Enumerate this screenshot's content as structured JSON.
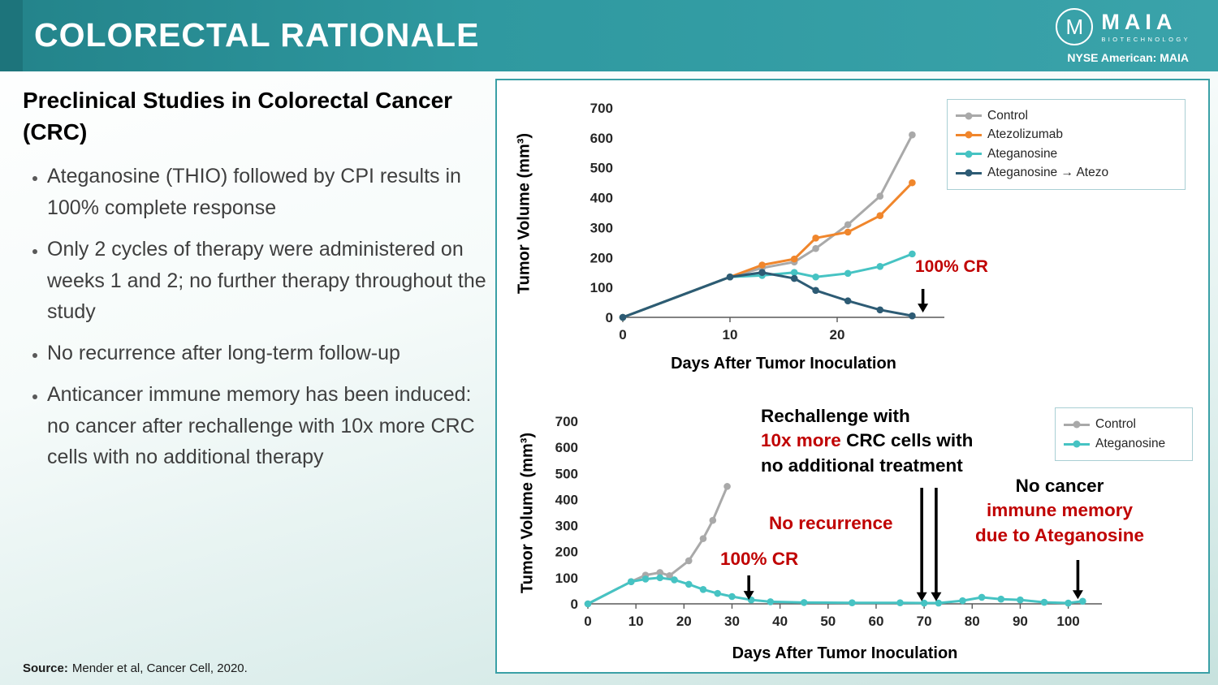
{
  "header": {
    "title": "COLORECTAL RATIONALE",
    "ticker": "NYSE American: MAIA",
    "logo": {
      "monogram": "M",
      "text": "MAIA",
      "subtext": "BIOTECHNOLOGY"
    }
  },
  "left_panel": {
    "heading": "Preclinical Studies in Colorectal Cancer (CRC)",
    "bullets": [
      "Ateganosine (THIO) followed by CPI results in 100% complete response",
      "Only 2 cycles of therapy were administered on weeks 1 and 2; no further therapy throughout the study",
      "No recurrence after long-term follow-up",
      "Anticancer immune memory has been induced: no cancer after rechallenge with 10x more CRC cells with no additional therapy"
    ],
    "source_label": "Source:",
    "source_text": "Mender et al, Cancer Cell, 2020."
  },
  "colors": {
    "header_teal": "#2f99a0",
    "panel_border": "#3aa0a6",
    "annotation_red": "#c00000",
    "control_gray": "#a9a9a9",
    "atezolizumab_orange": "#f0862c",
    "ateganosine_teal": "#46c3c3",
    "combo_slate": "#2d5b74"
  },
  "chart_data": [
    {
      "type": "line",
      "title": "",
      "ylabel": "Tumor Volume (mm³)",
      "xlabel": "Days After Tumor Inoculation",
      "ylim": [
        0,
        700
      ],
      "xlim": [
        0,
        30
      ],
      "yticks": [
        0,
        100,
        200,
        300,
        400,
        500,
        600,
        700
      ],
      "xticks": [
        0,
        10,
        20
      ],
      "grid": false,
      "legend_position": "top-right",
      "series": [
        {
          "name": "Control",
          "color": "#a9a9a9",
          "x": [
            0,
            10,
            13,
            16,
            18,
            21,
            24,
            27
          ],
          "y": [
            0,
            135,
            165,
            185,
            230,
            310,
            405,
            610
          ]
        },
        {
          "name": "Atezolizumab",
          "color": "#f0862c",
          "x": [
            0,
            10,
            13,
            16,
            18,
            21,
            24,
            27
          ],
          "y": [
            0,
            135,
            175,
            195,
            265,
            285,
            340,
            450
          ]
        },
        {
          "name": "Ateganosine",
          "color": "#46c3c3",
          "x": [
            0,
            10,
            13,
            16,
            18,
            21,
            24,
            27
          ],
          "y": [
            0,
            135,
            140,
            150,
            135,
            147,
            170,
            212
          ]
        },
        {
          "name": "Ateganosine →  Atezo",
          "color": "#2d5b74",
          "x": [
            0,
            10,
            13,
            16,
            18,
            21,
            24,
            27
          ],
          "y": [
            0,
            135,
            150,
            130,
            90,
            55,
            25,
            5
          ]
        }
      ],
      "annotations": [
        {
          "id": "cr",
          "segments": [
            {
              "text": "100% CR",
              "color": "#c00000"
            }
          ],
          "arrows": [
            {
              "x": 28,
              "y1": 95,
              "y2": 16
            }
          ]
        }
      ]
    },
    {
      "type": "line",
      "title": "",
      "ylabel": "Tumor Volume (mm³)",
      "xlabel": "Days After Tumor Inoculation",
      "ylim": [
        0,
        700
      ],
      "xlim": [
        0,
        107
      ],
      "yticks": [
        0,
        100,
        200,
        300,
        400,
        500,
        600,
        700
      ],
      "xticks": [
        0,
        10,
        20,
        30,
        40,
        50,
        60,
        70,
        80,
        90,
        100
      ],
      "grid": false,
      "legend_position": "top-right",
      "series": [
        {
          "name": "Control",
          "color": "#a9a9a9",
          "x": [
            0,
            9,
            12,
            15,
            17,
            21,
            24,
            26,
            29
          ],
          "y": [
            0,
            85,
            110,
            120,
            108,
            165,
            250,
            320,
            450
          ]
        },
        {
          "name": "Ateganosine",
          "color": "#46c3c3",
          "x": [
            0,
            9,
            12,
            15,
            18,
            21,
            24,
            27,
            30,
            34,
            38,
            45,
            55,
            65,
            70,
            73,
            78,
            82,
            86,
            90,
            95,
            100,
            103
          ],
          "y": [
            0,
            85,
            95,
            100,
            92,
            75,
            55,
            40,
            28,
            15,
            8,
            5,
            4,
            4,
            3,
            3,
            12,
            25,
            18,
            15,
            6,
            3,
            10
          ]
        }
      ],
      "annotations": [
        {
          "id": "rechallenge",
          "segments": [
            {
              "text": "Rechallenge with",
              "color": "#000000"
            },
            {
              "text": "10x more",
              "color": "#c00000"
            },
            {
              "text": " CRC cells with",
              "color": "#000000"
            },
            {
              "text": "no additional treatment",
              "color": "#000000"
            }
          ],
          "arrows": [
            {
              "x": 69.5,
              "y1": 445,
              "y2": 10
            },
            {
              "x": 72.5,
              "y1": 445,
              "y2": 10
            }
          ]
        },
        {
          "id": "no_recurrence",
          "segments": [
            {
              "text": "No recurrence",
              "color": "#c00000"
            }
          ],
          "arrows": []
        },
        {
          "id": "cr",
          "segments": [
            {
              "text": "100% CR",
              "color": "#c00000"
            }
          ],
          "arrows": [
            {
              "x": 33.5,
              "y1": 109,
              "y2": 15
            }
          ]
        },
        {
          "id": "memory",
          "segments": [
            {
              "text": "No cancer",
              "color": "#000000"
            },
            {
              "text": "immune memory",
              "color": "#c00000"
            },
            {
              "text": "due to Ateganosine",
              "color": "#c00000"
            }
          ],
          "arrows": [
            {
              "x": 102,
              "y1": 168,
              "y2": 18
            }
          ]
        }
      ]
    }
  ]
}
